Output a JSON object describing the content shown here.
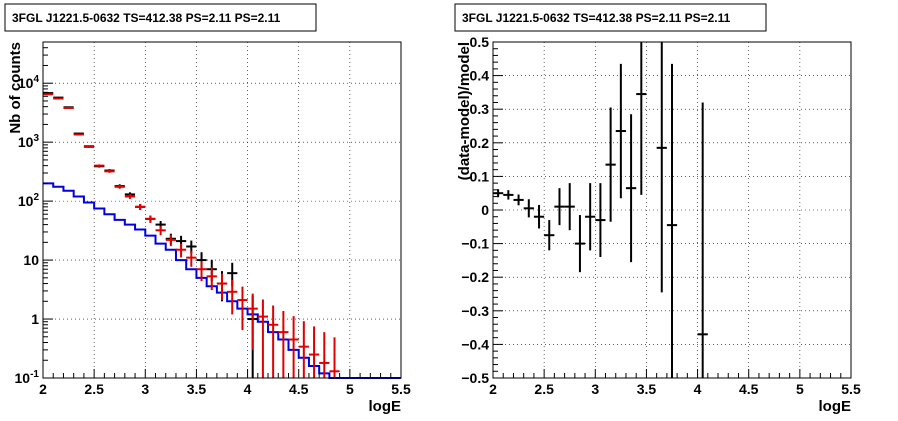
{
  "colors": {
    "data": "#000000",
    "model": "#e00000",
    "background": "#0000e0"
  },
  "chart_data": [
    {
      "type": "scatter",
      "title": "3FGL J1221.5-0632 TS=412.38 PS=2.11 PS=2.11",
      "xlabel": "logE",
      "ylabel": "Nb of counts",
      "xlim": [
        2,
        5.5
      ],
      "ylim": [
        0.1,
        50000
      ],
      "yscale": "log",
      "grid": true,
      "x_ticks": [
        "2",
        "2.5",
        "3",
        "3.5",
        "4",
        "4.5",
        "5",
        "5.5"
      ],
      "y_ticks": [
        "10^-1",
        "1",
        "10",
        "10^2",
        "10^3",
        "10^4"
      ],
      "bin_halfwidth": 0.05,
      "series": [
        {
          "role": "data",
          "x": [
            2.05,
            2.15,
            2.25,
            2.35,
            2.45,
            2.55,
            2.65,
            2.75,
            2.85,
            2.95,
            3.05,
            3.15,
            3.25,
            3.35,
            3.45,
            3.55,
            3.65,
            3.75,
            3.85,
            4.05
          ],
          "y": [
            6800,
            5700,
            3900,
            1400,
            850,
            390,
            330,
            180,
            130,
            80,
            50,
            40,
            23,
            21,
            17,
            10,
            7,
            4,
            6,
            1
          ],
          "yerr_lo": [
            80,
            75,
            60,
            36,
            28,
            19,
            18,
            13,
            11,
            9,
            7,
            6,
            4.6,
            4.4,
            4,
            3.1,
            2.6,
            2,
            2.4,
            0.9
          ],
          "yerr_hi": [
            80,
            75,
            60,
            36,
            28,
            19,
            18,
            13,
            11,
            9,
            7,
            6,
            5,
            4.8,
            4.4,
            3.6,
            3.1,
            2.5,
            3,
            1.5
          ]
        },
        {
          "role": "model",
          "x": [
            2.05,
            2.15,
            2.25,
            2.35,
            2.45,
            2.55,
            2.65,
            2.75,
            2.85,
            2.95,
            3.05,
            3.15,
            3.25,
            3.35,
            3.45,
            3.55,
            3.65,
            3.75,
            3.85,
            3.95,
            4.05,
            4.15,
            4.25,
            4.35,
            4.45,
            4.55,
            4.65,
            4.75,
            4.85
          ],
          "y": [
            6500,
            5500,
            3800,
            1350,
            830,
            400,
            320,
            175,
            120,
            80,
            50,
            32,
            22,
            15,
            11,
            7,
            5.3,
            4,
            2.9,
            2.1,
            1.5,
            1.1,
            0.8,
            0.6,
            0.45,
            0.34,
            0.25,
            0.18,
            0.13
          ],
          "yerr_lo": [
            80,
            75,
            60,
            37,
            29,
            20,
            18,
            13,
            11,
            9,
            7,
            5.6,
            4.7,
            3.9,
            3.3,
            2.6,
            2.2,
            1.9,
            1.7,
            1.45,
            1.2,
            1.05,
            0.8,
            0.6,
            0.45,
            0.34,
            0.25,
            0.18,
            0.13
          ],
          "yerr_hi": [
            80,
            75,
            60,
            37,
            29,
            20,
            18,
            13,
            11,
            9,
            7,
            5.6,
            4.7,
            3.9,
            3.3,
            2.6,
            2.2,
            1.9,
            1.7,
            1.45,
            1.2,
            1.05,
            0.9,
            0.77,
            0.67,
            0.58,
            0.5,
            0.42,
            0.36
          ]
        },
        {
          "role": "background",
          "step_edges": [
            2.0,
            2.1,
            2.2,
            2.3,
            2.4,
            2.5,
            2.6,
            2.7,
            2.8,
            2.9,
            3.0,
            3.1,
            3.2,
            3.3,
            3.4,
            3.5,
            3.6,
            3.7,
            3.8,
            3.9,
            4.0,
            4.1,
            4.2,
            4.3,
            4.4,
            4.5,
            4.6,
            4.7,
            4.8,
            4.9,
            5.0,
            5.1,
            5.2,
            5.3,
            5.4,
            5.5
          ],
          "y": [
            200,
            175,
            150,
            120,
            95,
            75,
            60,
            48,
            40,
            33,
            26,
            19,
            15,
            10,
            7,
            5,
            3.6,
            2.8,
            2,
            1.5,
            1.2,
            0.9,
            0.6,
            0.45,
            0.3,
            0.22,
            0.16,
            0.12,
            0.1,
            0.1,
            0.1,
            0.1,
            0.1,
            0.1,
            0.1
          ]
        }
      ]
    },
    {
      "type": "scatter",
      "title": "3FGL J1221.5-0632 TS=412.38 PS=2.11 PS=2.11",
      "xlabel": "logE",
      "ylabel": "(data-model)/model",
      "xlim": [
        2,
        5.5
      ],
      "ylim": [
        -0.5,
        0.5
      ],
      "grid": true,
      "x_ticks": [
        "2",
        "2.5",
        "3",
        "3.5",
        "4",
        "4.5",
        "5",
        "5.5"
      ],
      "y_ticks": [
        "−0.5",
        "−0.4",
        "−0.3",
        "−0.2",
        "−0.1",
        "0",
        "0.1",
        "0.2",
        "0.3",
        "0.4",
        "0.5"
      ],
      "bin_halfwidth": 0.05,
      "series": [
        {
          "role": "residual",
          "x": [
            2.05,
            2.15,
            2.25,
            2.35,
            2.45,
            2.55,
            2.65,
            2.75,
            2.85,
            2.95,
            3.05,
            3.15,
            3.25,
            3.35,
            3.45,
            3.65,
            3.75,
            4.05
          ],
          "y": [
            0.05,
            0.045,
            0.03,
            0.005,
            -0.02,
            -0.075,
            0.01,
            0.01,
            -0.1,
            -0.02,
            -0.03,
            0.135,
            0.235,
            0.065,
            0.345,
            0.185,
            -0.045,
            -0.37
          ],
          "yerr_lo": [
            0.012,
            0.014,
            0.016,
            0.027,
            0.035,
            0.045,
            0.055,
            0.07,
            0.085,
            0.1,
            0.11,
            0.17,
            0.2,
            0.22,
            0.3,
            0.43,
            0.46,
            0.69
          ],
          "yerr_hi": [
            0.012,
            0.014,
            0.016,
            0.027,
            0.035,
            0.045,
            0.055,
            0.07,
            0.085,
            0.1,
            0.11,
            0.17,
            0.2,
            0.22,
            0.3,
            0.43,
            0.48,
            0.69
          ]
        }
      ]
    }
  ]
}
